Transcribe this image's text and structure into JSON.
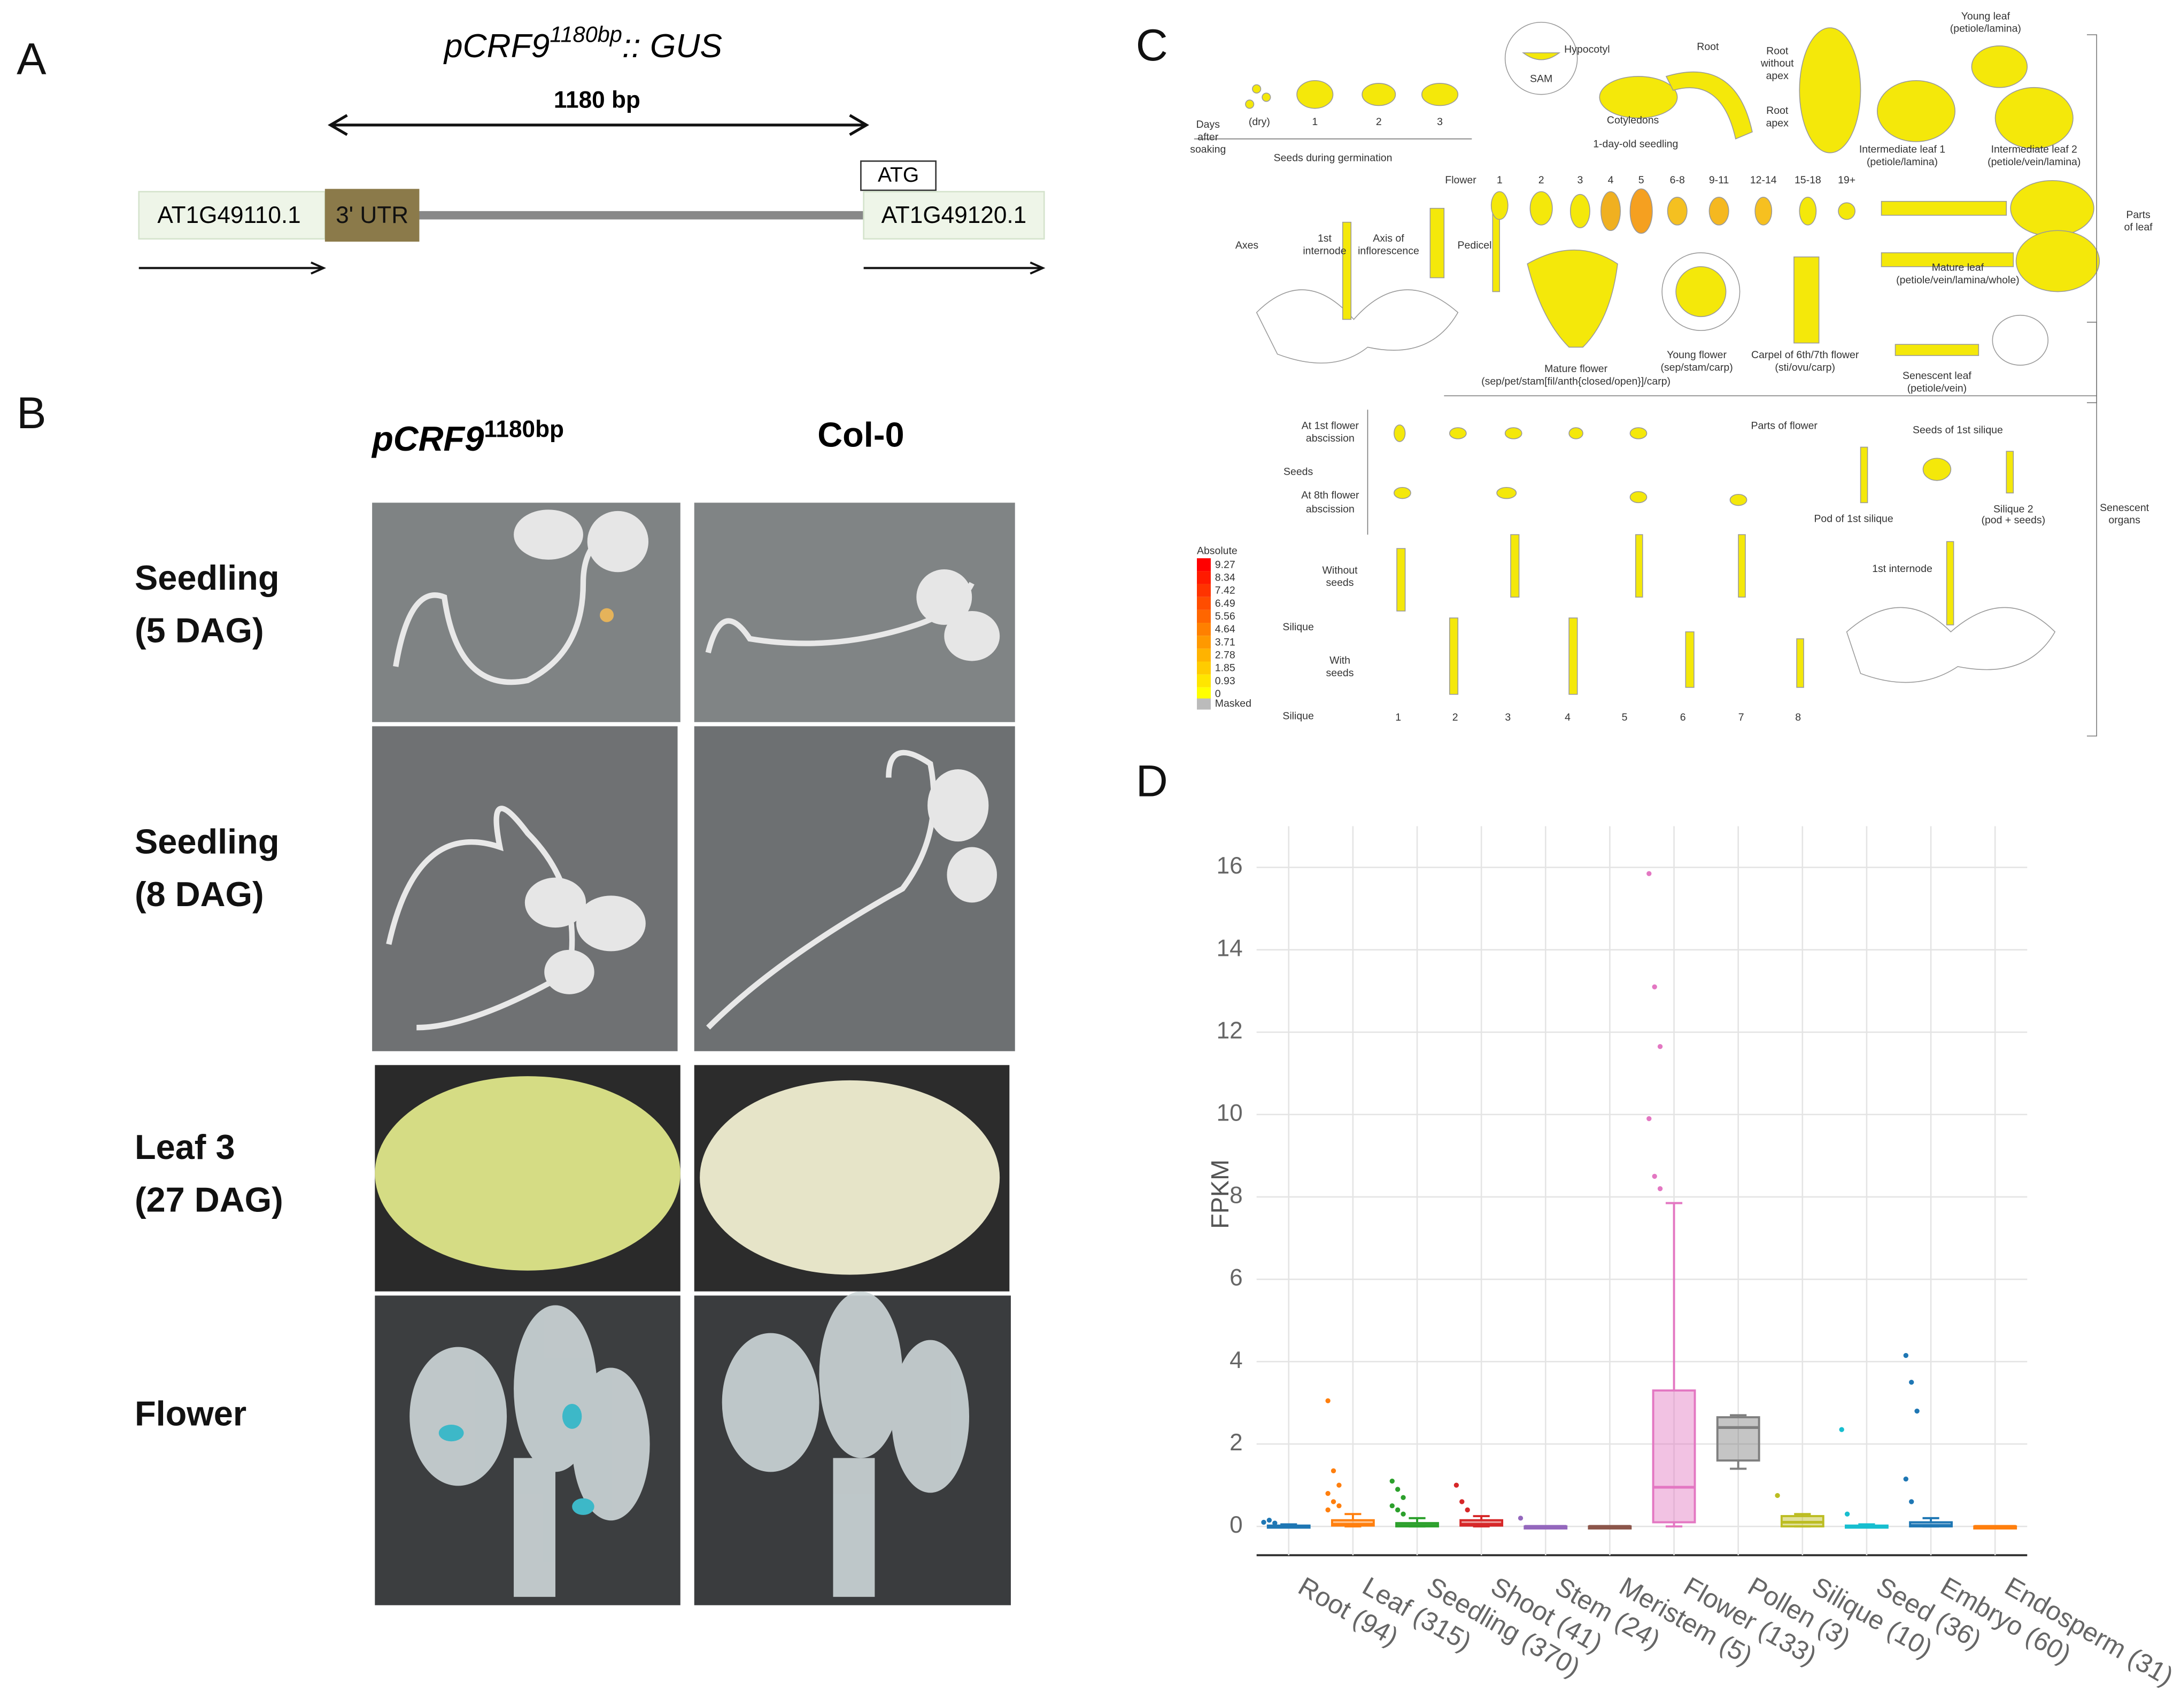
{
  "panel_a": {
    "letter": "A",
    "construct": "pCRF9",
    "construct_sup": "1180bp",
    "construct_suffix": ":: GUS",
    "length": "1180 bp",
    "gene_left": "AT1G49110.1",
    "utr": "3' UTR",
    "atg": "ATG",
    "gene_right": "AT1G49120.1"
  },
  "panel_b": {
    "letter": "B",
    "col1": "pCRF9",
    "col1_sup": "1180bp",
    "col2": "Col-0",
    "rows": [
      [
        "Seedling",
        "(5 DAG)"
      ],
      [
        "Seedling",
        "(8 DAG)"
      ],
      [
        "Leaf 3",
        "(27 DAG)"
      ],
      [
        "Flower"
      ]
    ]
  },
  "panel_c": {
    "letter": "C",
    "labels": [
      "(dry)",
      "1",
      "2",
      "3",
      "Days",
      "after",
      "soaking",
      "Seeds during germination",
      "SAM",
      "Hypocotyl",
      "Root",
      "Cotyledons",
      "1-day-old seedling",
      "Root",
      "without",
      "apex",
      "Root",
      "apex",
      "Young leaf",
      "(petiole/lamina)",
      "Intermediate leaf 1",
      "(petiole/lamina)",
      "Intermediate leaf 2",
      "(petiole/vein/lamina)",
      "Flower",
      "1",
      "2",
      "3",
      "4",
      "5",
      "6-8",
      "9-11",
      "12-14",
      "15-18",
      "19+",
      "Axes",
      "1st",
      "internode",
      "Axis of",
      "inflorescence",
      "Pedicel",
      "Mature leaf",
      "(petiole/vein/lamina/whole)",
      "Parts",
      "of leaf",
      "Mature flower",
      "(sep/pet/stam[fil/anth{closed/open}]/carp)",
      "Young flower",
      "(sep/stam/carp)",
      "Carpel of 6th/7th flower",
      "(sti/ovu/carp)",
      "Senescent leaf",
      "(petiole/vein)",
      "Parts of flower",
      "At 1st flower",
      "abscission",
      "Seeds",
      "At 8th flower",
      "abscission",
      "Seeds of 1st silique",
      "Pod of 1st silique",
      "Silique 2",
      "(pod + seeds)",
      "Senescent",
      "organs",
      "1st internode",
      "Without",
      "seeds",
      "Silique",
      "With",
      "seeds",
      "Silique",
      "1",
      "2",
      "3",
      "4",
      "5",
      "6",
      "7",
      "8"
    ],
    "legend_title": "Absolute",
    "legend_values": [
      "9.27",
      "8.34",
      "7.42",
      "6.49",
      "5.56",
      "4.64",
      "3.71",
      "2.78",
      "1.85",
      "0.93",
      "0"
    ],
    "masked": "Masked"
  },
  "panel_d_letter": "D",
  "chart_data": {
    "type": "box",
    "y_label": "FPKM",
    "categories": [
      "Root (94)",
      "Leaf (315)",
      "Seedling (370)",
      "Shoot (41)",
      "Stem (24)",
      "Meristem (5)",
      "Flower (133)",
      "Pollen (3)",
      "Silique (10)",
      "Seed (36)",
      "Embryo (60)",
      "Endosperm (31)"
    ],
    "colors": [
      "#1f77b4",
      "#ff7f0e",
      "#2ca02c",
      "#d62728",
      "#9467bd",
      "#8c564b",
      "#e377c2",
      "#7f7f7f",
      "#bcbd22",
      "#17becf",
      "#1f77b4",
      "#ff7f0e"
    ],
    "values": [
      {
        "min": 0,
        "q1": 0,
        "median": 0,
        "q3": 0.02,
        "max": 0.05,
        "outliers": [
          0.1,
          0.15,
          0.08
        ]
      },
      {
        "min": 0,
        "q1": 0.02,
        "median": 0.05,
        "q3": 0.15,
        "max": 0.3,
        "outliers": [
          3.05,
          1.35,
          1.0,
          0.8,
          0.6,
          0.5,
          0.4
        ]
      },
      {
        "min": 0,
        "q1": 0,
        "median": 0.02,
        "q3": 0.08,
        "max": 0.2,
        "outliers": [
          1.1,
          0.9,
          0.7,
          0.5,
          0.4,
          0.3
        ]
      },
      {
        "min": 0,
        "q1": 0.02,
        "median": 0.05,
        "q3": 0.15,
        "max": 0.25,
        "outliers": [
          1.0,
          0.6,
          0.4
        ]
      },
      {
        "min": 0,
        "q1": 0,
        "median": 0,
        "q3": 0,
        "max": 0,
        "outliers": [
          0.2
        ]
      },
      {
        "min": 0,
        "q1": 0,
        "median": 0,
        "q3": 0,
        "max": 0,
        "outliers": []
      },
      {
        "min": 0,
        "q1": 0.1,
        "median": 0.95,
        "q3": 3.3,
        "max": 7.85,
        "outliers": [
          15.85,
          13.1,
          11.65,
          9.9,
          8.5,
          8.2
        ]
      },
      {
        "min": 1.4,
        "q1": 1.6,
        "median": 2.4,
        "q3": 2.65,
        "max": 2.7,
        "outliers": []
      },
      {
        "min": 0,
        "q1": 0,
        "median": 0.1,
        "q3": 0.25,
        "max": 0.3,
        "outliers": [
          0.75
        ]
      },
      {
        "min": 0,
        "q1": 0,
        "median": 0,
        "q3": 0.02,
        "max": 0.05,
        "outliers": [
          2.35,
          0.3
        ]
      },
      {
        "min": 0,
        "q1": 0,
        "median": 0.02,
        "q3": 0.1,
        "max": 0.2,
        "outliers": [
          4.15,
          3.5,
          2.8,
          1.15,
          0.6
        ]
      },
      {
        "min": 0,
        "q1": 0,
        "median": 0,
        "q3": 0,
        "max": 0,
        "outliers": []
      }
    ],
    "ylim": [
      -0.7,
      17
    ],
    "yticks": [
      0,
      2,
      4,
      6,
      8,
      10,
      12,
      14,
      16
    ],
    "grid": true
  }
}
